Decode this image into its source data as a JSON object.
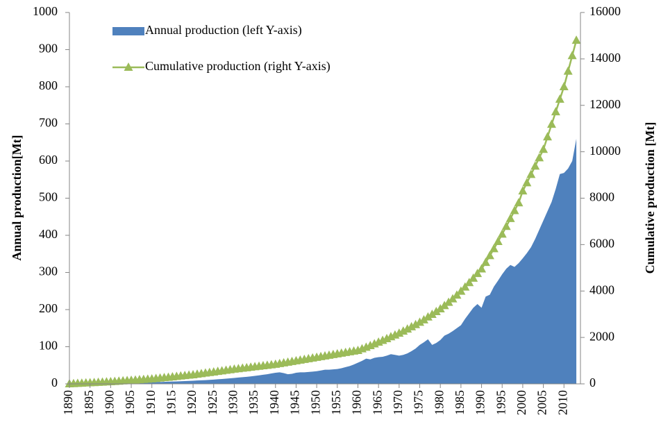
{
  "chart_data": {
    "type": "area",
    "y_label": "Annual production[Mt]",
    "y2_label": "Cumulative production [Mt]",
    "x": [
      1890,
      1891,
      1892,
      1893,
      1894,
      1895,
      1896,
      1897,
      1898,
      1899,
      1900,
      1901,
      1902,
      1903,
      1904,
      1905,
      1906,
      1907,
      1908,
      1909,
      1910,
      1911,
      1912,
      1913,
      1914,
      1915,
      1916,
      1917,
      1918,
      1919,
      1920,
      1921,
      1922,
      1923,
      1924,
      1925,
      1926,
      1927,
      1928,
      1929,
      1930,
      1931,
      1932,
      1933,
      1934,
      1935,
      1936,
      1937,
      1938,
      1939,
      1940,
      1941,
      1942,
      1943,
      1944,
      1945,
      1946,
      1947,
      1948,
      1949,
      1950,
      1951,
      1952,
      1953,
      1954,
      1955,
      1956,
      1957,
      1958,
      1959,
      1960,
      1961,
      1962,
      1963,
      1964,
      1965,
      1966,
      1967,
      1968,
      1969,
      1970,
      1971,
      1972,
      1973,
      1974,
      1975,
      1976,
      1977,
      1978,
      1979,
      1980,
      1981,
      1982,
      1983,
      1984,
      1985,
      1986,
      1987,
      1988,
      1989,
      1990,
      1991,
      1992,
      1993,
      1994,
      1995,
      1996,
      1997,
      1998,
      1999,
      2000,
      2001,
      2002,
      2003,
      2004,
      2005,
      2006,
      2007,
      2008,
      2009,
      2010,
      2011,
      2012,
      2013
    ],
    "series": [
      {
        "name": "Annual production (left Y-axis)",
        "type": "area",
        "color": "#4f81bd",
        "values": [
          0.5,
          0.6,
          0.7,
          0.8,
          0.9,
          1,
          1.1,
          1.2,
          1.4,
          1.5,
          1.7,
          1.9,
          2.1,
          2.3,
          2.5,
          2.8,
          3,
          3.3,
          3.6,
          4,
          4.3,
          4.7,
          5,
          5.4,
          5.8,
          6.2,
          6.6,
          7,
          7.5,
          8,
          8.5,
          9,
          9.5,
          10,
          10.8,
          11.5,
          12.3,
          13,
          14,
          15,
          16,
          17,
          18,
          19,
          20,
          21.5,
          23,
          24.5,
          26,
          28,
          30,
          31,
          29,
          26,
          27,
          30,
          31,
          31,
          32,
          33,
          34,
          36,
          38,
          38,
          39,
          40,
          42,
          45,
          48,
          52,
          57,
          62,
          68,
          66,
          70,
          72,
          73,
          76,
          80,
          78,
          76,
          78,
          82,
          88,
          95,
          105,
          112,
          120,
          105,
          110,
          118,
          130,
          135,
          142,
          150,
          158,
          175,
          190,
          205,
          215,
          205,
          235,
          240,
          262,
          278,
          295,
          310,
          320,
          315,
          325,
          338,
          352,
          368,
          390,
          415,
          440,
          465,
          490,
          525,
          565,
          568,
          580,
          600,
          660
        ]
      },
      {
        "name": "Cumulative production (right Y-axis)",
        "type": "line",
        "marker": "triangle",
        "axis": "y2",
        "color": "#9bbb59",
        "values": [
          0,
          9,
          18,
          27,
          36,
          45,
          54,
          63,
          72,
          81,
          90,
          102,
          114,
          126,
          138,
          150,
          162,
          174,
          186,
          198,
          210,
          228,
          246,
          264,
          282,
          300,
          318,
          336,
          354,
          372,
          390,
          414,
          438,
          462,
          486,
          510,
          534,
          558,
          582,
          606,
          630,
          651,
          672,
          693,
          714,
          735,
          756,
          777,
          798,
          819,
          840,
          870,
          900,
          930,
          960,
          990,
          1020,
          1050,
          1080,
          1110,
          1140,
          1170,
          1200,
          1230,
          1260,
          1290,
          1320,
          1350,
          1380,
          1410,
          1435,
          1505,
          1575,
          1645,
          1720,
          1795,
          1870,
          1945,
          2025,
          2100,
          2180,
          2270,
          2360,
          2455,
          2550,
          2650,
          2755,
          2880,
          2990,
          3110,
          3230,
          3370,
          3510,
          3660,
          3820,
          3990,
          4170,
          4360,
          4550,
          4750,
          4950,
          5230,
          5520,
          5820,
          6130,
          6450,
          6780,
          7120,
          7460,
          7800,
          8310,
          8660,
          9020,
          9380,
          9740,
          10100,
          10640,
          11180,
          11720,
          12260,
          12800,
          13470,
          14140,
          14800
        ]
      }
    ],
    "xlim": [
      1890,
      2014
    ],
    "xticks": [
      1890,
      1895,
      1900,
      1905,
      1910,
      1915,
      1920,
      1925,
      1930,
      1935,
      1940,
      1945,
      1950,
      1955,
      1960,
      1965,
      1970,
      1975,
      1980,
      1985,
      1990,
      1995,
      2000,
      2005,
      2010
    ],
    "ylim": [
      0,
      1000
    ],
    "yticks": [
      0,
      100,
      200,
      300,
      400,
      500,
      600,
      700,
      800,
      900,
      1000
    ],
    "y2lim": [
      0,
      16000
    ],
    "y2ticks": [
      0,
      2000,
      4000,
      6000,
      8000,
      10000,
      12000,
      14000,
      16000
    ],
    "legend": "top-left"
  }
}
